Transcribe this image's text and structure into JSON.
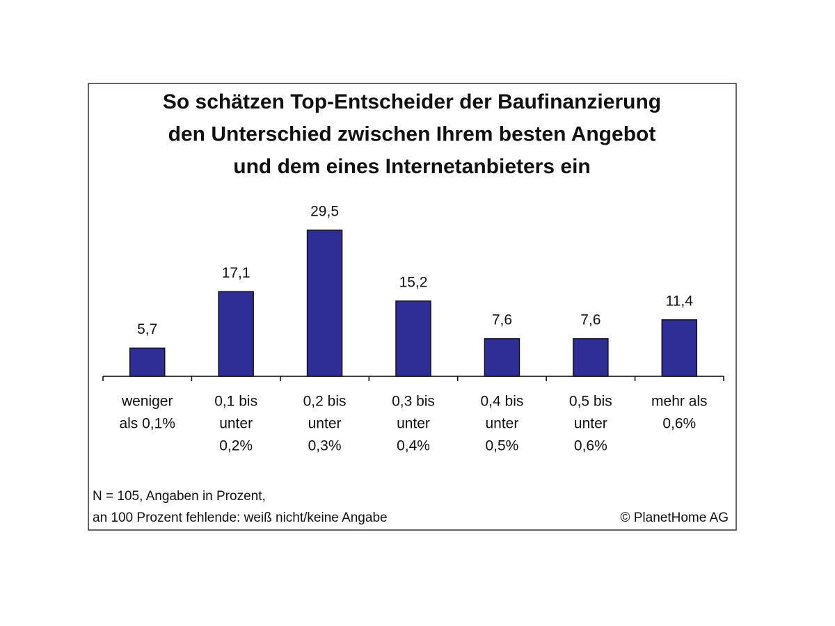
{
  "chart_data": {
    "type": "bar",
    "title": [
      "So schätzen Top-Entscheider der Baufinanzierung",
      "den Unterschied zwischen Ihrem besten Angebot",
      "und dem eines Internetanbieters ein"
    ],
    "categories": [
      [
        "weniger",
        "als 0,1%"
      ],
      [
        "0,1 bis",
        "unter",
        "0,2%"
      ],
      [
        "0,2 bis",
        "unter",
        "0,3%"
      ],
      [
        "0,3 bis",
        "unter",
        "0,4%"
      ],
      [
        "0,4 bis",
        "unter",
        "0,5%"
      ],
      [
        "0,5 bis",
        "unter",
        "0,6%"
      ],
      [
        "mehr als",
        "0,6%"
      ]
    ],
    "values": [
      5.7,
      17.1,
      29.5,
      15.2,
      7.6,
      7.6,
      11.4
    ],
    "value_labels": [
      "5,7",
      "17,1",
      "29,5",
      "15,2",
      "7,6",
      "7,6",
      "11,4"
    ],
    "color": "#2e2e96",
    "footnote": [
      "N = 105, Angaben in Prozent,",
      "an 100 Prozent fehlende: weiß nicht/keine Angabe"
    ],
    "source": "© PlanetHome AG"
  }
}
